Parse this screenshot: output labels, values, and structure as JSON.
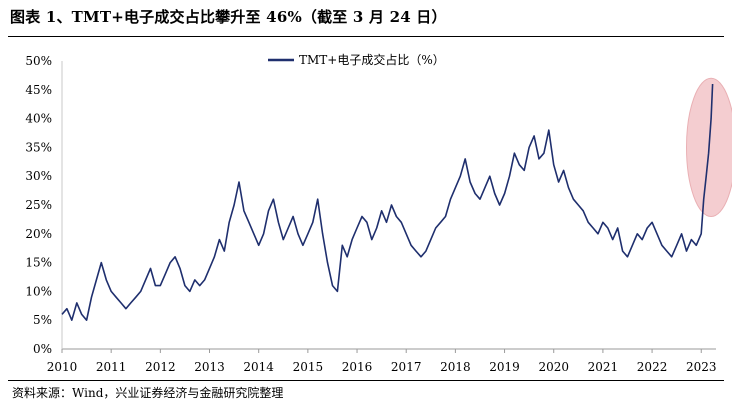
{
  "header": {
    "title": "图表 1、TMT+电子成交占比攀升至 46%（截至 3 月 24 日）"
  },
  "footer": {
    "source": "资料来源：Wind，兴业证券经济与金融研究院整理"
  },
  "colors": {
    "line": "#1f2f6e",
    "highlight_fill": "#f3c5c8",
    "highlight_stroke": "#e6a3a8"
  },
  "chart_data": {
    "type": "line",
    "legend_position": "top-center",
    "grid": false,
    "ylim": [
      0,
      50
    ],
    "xlim": [
      2010.0,
      2023.3
    ],
    "y_ticks": [
      {
        "value": 0,
        "label": "0%"
      },
      {
        "value": 5,
        "label": "5%"
      },
      {
        "value": 10,
        "label": "10%"
      },
      {
        "value": 15,
        "label": "15%"
      },
      {
        "value": 20,
        "label": "20%"
      },
      {
        "value": 25,
        "label": "25%"
      },
      {
        "value": 30,
        "label": "30%"
      },
      {
        "value": 35,
        "label": "35%"
      },
      {
        "value": 40,
        "label": "40%"
      },
      {
        "value": 45,
        "label": "45%"
      },
      {
        "value": 50,
        "label": "50%"
      }
    ],
    "x_ticks": [
      {
        "value": 2010,
        "label": "2010"
      },
      {
        "value": 2011,
        "label": "2011"
      },
      {
        "value": 2012,
        "label": "2012"
      },
      {
        "value": 2013,
        "label": "2013"
      },
      {
        "value": 2014,
        "label": "2014"
      },
      {
        "value": 2015,
        "label": "2015"
      },
      {
        "value": 2016,
        "label": "2016"
      },
      {
        "value": 2017,
        "label": "2017"
      },
      {
        "value": 2018,
        "label": "2018"
      },
      {
        "value": 2019,
        "label": "2019"
      },
      {
        "value": 2020,
        "label": "2020"
      },
      {
        "value": 2021,
        "label": "2021"
      },
      {
        "value": 2022,
        "label": "2022"
      },
      {
        "value": 2023,
        "label": "2023"
      }
    ],
    "annotation": {
      "type": "ellipse",
      "x_center": 2023.2,
      "y_center": 35,
      "x_radius": 0.5,
      "y_radius": 12
    },
    "series": [
      {
        "name": "TMT+电子成交占比（%）",
        "x": [
          2010.0,
          2010.1,
          2010.2,
          2010.3,
          2010.4,
          2010.5,
          2010.6,
          2010.7,
          2010.8,
          2010.9,
          2011.0,
          2011.1,
          2011.2,
          2011.3,
          2011.4,
          2011.5,
          2011.6,
          2011.7,
          2011.8,
          2011.9,
          2012.0,
          2012.1,
          2012.2,
          2012.3,
          2012.4,
          2012.5,
          2012.6,
          2012.7,
          2012.8,
          2012.9,
          2013.0,
          2013.1,
          2013.2,
          2013.3,
          2013.4,
          2013.5,
          2013.6,
          2013.7,
          2013.8,
          2013.9,
          2014.0,
          2014.1,
          2014.2,
          2014.3,
          2014.4,
          2014.5,
          2014.6,
          2014.7,
          2014.8,
          2014.9,
          2015.0,
          2015.1,
          2015.2,
          2015.3,
          2015.4,
          2015.5,
          2015.6,
          2015.7,
          2015.8,
          2015.9,
          2016.0,
          2016.1,
          2016.2,
          2016.3,
          2016.4,
          2016.5,
          2016.6,
          2016.7,
          2016.8,
          2016.9,
          2017.0,
          2017.1,
          2017.2,
          2017.3,
          2017.4,
          2017.5,
          2017.6,
          2017.7,
          2017.8,
          2017.9,
          2018.0,
          2018.1,
          2018.2,
          2018.3,
          2018.4,
          2018.5,
          2018.6,
          2018.7,
          2018.8,
          2018.9,
          2019.0,
          2019.1,
          2019.2,
          2019.3,
          2019.4,
          2019.5,
          2019.6,
          2019.7,
          2019.8,
          2019.9,
          2020.0,
          2020.1,
          2020.2,
          2020.3,
          2020.4,
          2020.5,
          2020.6,
          2020.7,
          2020.8,
          2020.9,
          2021.0,
          2021.1,
          2021.2,
          2021.3,
          2021.4,
          2021.5,
          2021.6,
          2021.7,
          2021.8,
          2021.9,
          2022.0,
          2022.1,
          2022.2,
          2022.3,
          2022.4,
          2022.5,
          2022.6,
          2022.7,
          2022.8,
          2022.9,
          2023.0,
          2023.05,
          2023.1,
          2023.15,
          2023.2,
          2023.23
        ],
        "values": [
          6,
          7,
          5,
          8,
          6,
          5,
          9,
          12,
          15,
          12,
          10,
          9,
          8,
          7,
          8,
          9,
          10,
          12,
          14,
          11,
          11,
          13,
          15,
          16,
          14,
          11,
          10,
          12,
          11,
          12,
          14,
          16,
          19,
          17,
          22,
          25,
          29,
          24,
          22,
          20,
          18,
          20,
          24,
          26,
          22,
          19,
          21,
          23,
          20,
          18,
          20,
          22,
          26,
          20,
          15,
          11,
          10,
          18,
          16,
          19,
          21,
          23,
          22,
          19,
          21,
          24,
          22,
          25,
          23,
          22,
          20,
          18,
          17,
          16,
          17,
          19,
          21,
          22,
          23,
          26,
          28,
          30,
          33,
          29,
          27,
          26,
          28,
          30,
          27,
          25,
          27,
          30,
          34,
          32,
          31,
          35,
          37,
          33,
          34,
          38,
          32,
          29,
          31,
          28,
          26,
          25,
          24,
          22,
          21,
          20,
          22,
          21,
          19,
          21,
          17,
          16,
          18,
          20,
          19,
          21,
          22,
          20,
          18,
          17,
          16,
          18,
          20,
          17,
          19,
          18,
          20,
          26,
          30,
          34,
          40,
          46
        ]
      }
    ]
  }
}
